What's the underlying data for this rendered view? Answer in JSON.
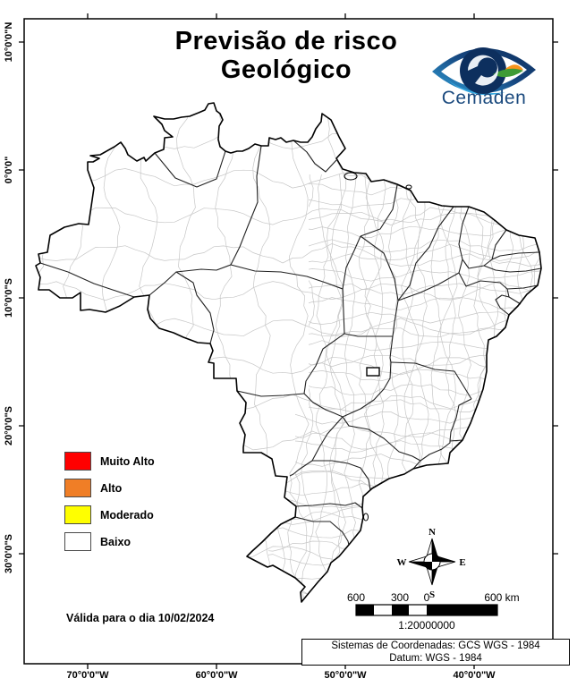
{
  "title": {
    "line1": "Previsão de risco",
    "line2": "Geológico"
  },
  "logo": {
    "name": "Cemaden"
  },
  "map": {
    "country": "Brazil",
    "risk_layer_note": "no risk polygons shaded on this date"
  },
  "legend": {
    "items": [
      {
        "label": "Muito Alto",
        "color": "#FF0000"
      },
      {
        "label": "Alto",
        "color": "#F07E26"
      },
      {
        "label": "Moderado",
        "color": "#FFFF00"
      },
      {
        "label": "Baixo",
        "color": "#FFFFFF"
      }
    ]
  },
  "validity": {
    "text": "Válida para o dia 10/02/2024"
  },
  "compass": {
    "north": "N",
    "south": "S",
    "east": "E",
    "west": "W"
  },
  "scale_bar": {
    "labels": [
      "600",
      "300",
      "0"
    ],
    "end_label": "600 km",
    "ratio": "1:20000000"
  },
  "coordinates_box": {
    "line1": "Sistemas de Coordenadas: GCS WGS - 1984",
    "line2": "Datum: WGS - 1984"
  },
  "axes": {
    "latitude_labels": [
      "10°0'0\"N",
      "0°0'0\"",
      "10°0'0\"S",
      "20°0'0\"S",
      "30°0'0\"S"
    ],
    "longitude_labels": [
      "70°0'0\"W",
      "60°0'0\"W",
      "50°0'0\"W",
      "40°0'0\"W"
    ]
  }
}
